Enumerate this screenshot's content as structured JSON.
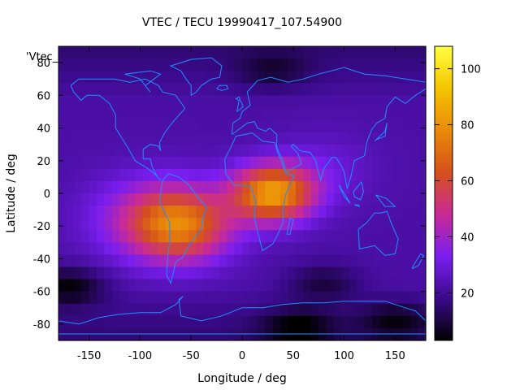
{
  "chart_data": {
    "type": "heatmap",
    "title": "VTEC / TECU 19990417_107.54900",
    "xlabel": "Longitude / deg",
    "ylabel": "Latitude / deg",
    "key_label": "'Vtec_",
    "xlim": [
      -180,
      180
    ],
    "ylim": [
      -90,
      90
    ],
    "x_ticks": [
      -150,
      -100,
      -50,
      0,
      50,
      100,
      150
    ],
    "y_ticks": [
      -80,
      -60,
      -40,
      -20,
      0,
      20,
      40,
      60,
      80
    ],
    "colorbar": {
      "range": [
        3,
        108
      ],
      "ticks": [
        20,
        40,
        60,
        80,
        100
      ]
    },
    "colormap": [
      "#000000",
      "#3a0a8a",
      "#7a1ef0",
      "#c92a96",
      "#d5501c",
      "#ea8a08",
      "#f4c400",
      "#ffff40"
    ],
    "coastline_color": "#1e90ff",
    "grid_resolution_deg": 7.5,
    "sources": [
      {
        "lon": 30,
        "lat": 0,
        "value": 88,
        "sigma_lon": 28,
        "sigma_lat": 12
      },
      {
        "lon": -60,
        "lat": -20,
        "value": 66,
        "sigma_lon": 34,
        "sigma_lat": 15
      },
      {
        "lon": -85,
        "lat": -15,
        "value": 45,
        "sigma_lon": 45,
        "sigma_lat": 18
      },
      {
        "lon": 80,
        "lat": 15,
        "value": 30,
        "sigma_lon": 35,
        "sigma_lat": 15
      },
      {
        "lon": -40,
        "lat": 10,
        "value": 22,
        "sigma_lon": 40,
        "sigma_lat": 20
      }
    ],
    "background_value": 22,
    "dark_regions": [
      {
        "lon": -170,
        "lat": -57,
        "value": 4
      },
      {
        "lon": 30,
        "lat": 75,
        "value": 12
      },
      {
        "lon": 80,
        "lat": -55,
        "value": 10
      },
      {
        "lon": 55,
        "lat": -82,
        "value": 6
      },
      {
        "lon": 150,
        "lat": -78,
        "value": 9
      }
    ]
  }
}
